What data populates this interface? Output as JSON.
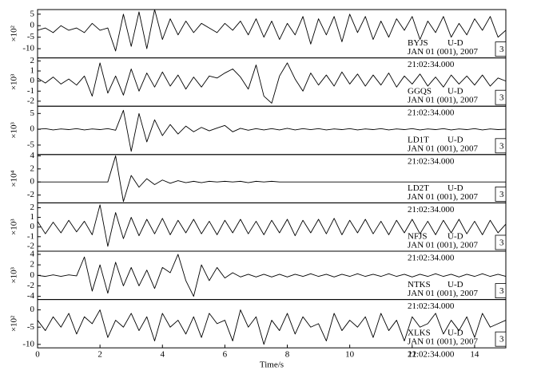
{
  "chart_data": [
    {
      "type": "line",
      "ylabel": "×10²",
      "station": "BYJS",
      "component": "U-D",
      "date": "JAN 01 (001), 2007",
      "time": "21:02:34.000",
      "scale_box": "3",
      "xlim": [
        0,
        15
      ],
      "ylim": [
        -14,
        7
      ],
      "yticks": [
        5,
        0,
        -5,
        -10
      ],
      "x": [
        0,
        0.25,
        0.5,
        0.75,
        1,
        1.25,
        1.5,
        1.75,
        2,
        2.25,
        2.5,
        2.75,
        3,
        3.25,
        3.5,
        3.75,
        4,
        4.25,
        4.5,
        4.75,
        5,
        5.25,
        5.5,
        5.75,
        6,
        6.25,
        6.5,
        6.75,
        7,
        7.25,
        7.5,
        7.75,
        8,
        8.25,
        8.5,
        8.75,
        9,
        9.25,
        9.5,
        9.75,
        10,
        10.25,
        10.5,
        10.75,
        11,
        11.25,
        11.5,
        11.75,
        12,
        12.25,
        12.5,
        12.75,
        13,
        13.25,
        13.5,
        13.75,
        14,
        14.25,
        14.5,
        14.75,
        15
      ],
      "series": [
        {
          "color": "#000000",
          "values": [
            -2,
            -1,
            -3,
            0,
            -2,
            -1,
            -3,
            1,
            -2,
            -1,
            -11,
            5,
            -9,
            6,
            -10,
            7,
            -6,
            3,
            -4,
            2,
            -3,
            1,
            -1,
            -3,
            1,
            -2,
            2,
            -4,
            3,
            -5,
            2,
            -6,
            1,
            -4,
            4,
            -8,
            3,
            -4,
            4,
            -7,
            5,
            -3,
            4,
            -6,
            2,
            -5,
            3,
            -2,
            4,
            -6,
            2,
            -3,
            4,
            -5,
            1,
            -4,
            3,
            -2,
            4,
            -5,
            -2
          ]
        }
      ]
    },
    {
      "type": "line",
      "ylabel": "×10³",
      "station": "GGQS",
      "component": "U-D",
      "date": "JAN 01 (001), 2007",
      "time": "21:02:34.000",
      "scale_box": "3",
      "xlim": [
        0,
        15
      ],
      "ylim": [
        -2.5,
        2.3
      ],
      "yticks": [
        2,
        1,
        0,
        -1,
        -2
      ],
      "x": [
        0,
        0.25,
        0.5,
        0.75,
        1,
        1.25,
        1.5,
        1.75,
        2,
        2.25,
        2.5,
        2.75,
        3,
        3.25,
        3.5,
        3.75,
        4,
        4.25,
        4.5,
        4.75,
        5,
        5.25,
        5.5,
        5.75,
        6,
        6.25,
        6.5,
        6.75,
        7,
        7.25,
        7.5,
        7.75,
        8,
        8.25,
        8.5,
        8.75,
        9,
        9.25,
        9.5,
        9.75,
        10,
        10.25,
        10.5,
        10.75,
        11,
        11.25,
        11.5,
        11.75,
        12,
        12.25,
        12.5,
        12.75,
        13,
        13.25,
        13.5,
        13.75,
        14,
        14.25,
        14.5,
        14.75,
        15
      ],
      "series": [
        {
          "color": "#000000",
          "values": [
            0.3,
            -0.2,
            0.4,
            -0.3,
            0.2,
            -0.4,
            0.5,
            -1.5,
            1.8,
            -1.2,
            0.5,
            -1.4,
            1.2,
            -1,
            0.8,
            -0.6,
            0.9,
            -0.5,
            0.6,
            -0.8,
            0.4,
            -0.6,
            0.5,
            0.3,
            0.8,
            1.2,
            0.4,
            -0.8,
            1.6,
            -1.5,
            -2.2,
            0.5,
            1.8,
            0.2,
            -1,
            0.8,
            -0.4,
            0.6,
            -0.5,
            0.9,
            -0.3,
            0.7,
            -0.5,
            0.6,
            -0.4,
            0.8,
            -0.6,
            0.5,
            -0.3,
            0.7,
            -0.5,
            0.4,
            -0.6,
            0.6,
            -0.3,
            0.5,
            -0.4,
            0.6,
            -0.5,
            0.3,
            0
          ]
        }
      ]
    },
    {
      "type": "line",
      "ylabel": "×10³",
      "station": "LD1T",
      "component": "U-D",
      "date": "JAN 01 (001), 2007",
      "time": "21:02:34.000",
      "scale_box": "3",
      "xlim": [
        0,
        15
      ],
      "ylim": [
        -8,
        7.3
      ],
      "yticks": [
        5,
        0,
        -5
      ],
      "x": [
        0,
        0.25,
        0.5,
        0.75,
        1,
        1.25,
        1.5,
        1.75,
        2,
        2.25,
        2.5,
        2.75,
        3,
        3.25,
        3.5,
        3.75,
        4,
        4.25,
        4.5,
        4.75,
        5,
        5.25,
        5.5,
        5.75,
        6,
        6.25,
        6.5,
        6.75,
        7,
        7.25,
        7.5,
        7.75,
        8,
        8.25,
        8.5,
        8.75,
        9,
        9.25,
        9.5,
        9.75,
        10,
        10.25,
        10.5,
        10.75,
        11,
        11.25,
        11.5,
        11.75,
        12,
        12.25,
        12.5,
        12.75,
        13,
        13.25,
        13.5,
        13.75,
        14,
        14.25,
        14.5,
        14.75,
        15
      ],
      "series": [
        {
          "color": "#000000",
          "values": [
            0,
            0.2,
            -0.2,
            0.1,
            -0.1,
            0.2,
            -0.2,
            0.1,
            -0.1,
            0.2,
            -0.3,
            6,
            -7,
            5,
            -4,
            3,
            -2,
            1.5,
            -1.5,
            1,
            -0.8,
            0.6,
            -0.5,
            0.4,
            1.2,
            -0.8,
            0.3,
            -0.3,
            0.2,
            -0.2,
            0.2,
            -0.2,
            0.3,
            -0.2,
            0.2,
            -0.1,
            0.2,
            -0.2,
            0.1,
            -0.1,
            0.2,
            -0.2,
            0.1,
            -0.1,
            0.2,
            -0.2,
            0.1,
            -0.1,
            0.2,
            -0.2,
            0.1,
            -0.1,
            0.2,
            -0.2,
            0.1,
            -0.1,
            0.2,
            -0.2,
            0.1,
            -0.1,
            0
          ]
        }
      ]
    },
    {
      "type": "line",
      "ylabel": "×10⁴",
      "station": "LD2T",
      "component": "U-D",
      "date": "JAN 01 (001), 2007",
      "time": "21:02:34.000",
      "scale_box": "3",
      "xlim": [
        0,
        15
      ],
      "ylim": [
        -3.2,
        4.2
      ],
      "yticks": [
        4,
        2,
        0,
        -2
      ],
      "x": [
        0,
        0.25,
        0.5,
        0.75,
        1,
        1.25,
        1.5,
        1.75,
        2,
        2.25,
        2.5,
        2.75,
        3,
        3.25,
        3.5,
        3.75,
        4,
        4.25,
        4.5,
        4.75,
        5,
        5.25,
        5.5,
        5.75,
        6,
        6.25,
        6.5,
        6.75,
        7,
        7.25,
        7.5,
        7.75,
        8,
        8.25,
        8.5,
        8.75,
        9,
        9.25,
        9.5,
        9.75,
        10,
        10.25,
        10.5,
        10.75,
        11,
        11.25,
        11.5,
        11.75,
        12,
        12.25,
        12.5,
        12.75,
        13,
        13.25,
        13.5,
        13.75,
        14,
        14.25,
        14.5,
        14.75,
        15
      ],
      "series": [
        {
          "color": "#000000",
          "values": [
            0,
            0,
            0,
            0,
            0,
            0,
            0,
            0,
            0,
            0,
            4,
            -3,
            1,
            -0.8,
            0.5,
            -0.4,
            0.3,
            -0.2,
            0.2,
            -0.1,
            0.1,
            -0.1,
            0.1,
            0,
            0.1,
            0,
            0.1,
            -0.1,
            0.1,
            0,
            0.1,
            0,
            0,
            0,
            0,
            0,
            0,
            0,
            0,
            0,
            0,
            0,
            0,
            0,
            0,
            0,
            0,
            0,
            0,
            0,
            0,
            0,
            0,
            0,
            0,
            0,
            0,
            0,
            0,
            0,
            0
          ]
        }
      ]
    },
    {
      "type": "line",
      "ylabel": "×10³",
      "station": "NFJS",
      "component": "U-D",
      "date": "JAN 01 (001), 2007",
      "time": "21:02:34.000",
      "scale_box": "3",
      "xlim": [
        0,
        15
      ],
      "ylim": [
        -2.5,
        2.5
      ],
      "yticks": [
        2,
        1,
        0,
        -1,
        -2
      ],
      "x": [
        0,
        0.25,
        0.5,
        0.75,
        1,
        1.25,
        1.5,
        1.75,
        2,
        2.25,
        2.5,
        2.75,
        3,
        3.25,
        3.5,
        3.75,
        4,
        4.25,
        4.5,
        4.75,
        5,
        5.25,
        5.5,
        5.75,
        6,
        6.25,
        6.5,
        6.75,
        7,
        7.25,
        7.5,
        7.75,
        8,
        8.25,
        8.5,
        8.75,
        9,
        9.25,
        9.5,
        9.75,
        10,
        10.25,
        10.5,
        10.75,
        11,
        11.25,
        11.5,
        11.75,
        12,
        12.25,
        12.5,
        12.75,
        13,
        13.25,
        13.5,
        13.75,
        14,
        14.25,
        14.5,
        14.75,
        15
      ],
      "series": [
        {
          "color": "#000000",
          "values": [
            0.6,
            -0.7,
            0.5,
            -0.6,
            0.7,
            -0.5,
            0.6,
            -0.8,
            2.3,
            -2,
            1.5,
            -1.2,
            1,
            -0.9,
            0.8,
            -0.7,
            0.9,
            -0.8,
            0.7,
            -0.6,
            0.8,
            -0.7,
            0.6,
            -0.8,
            0.7,
            -0.6,
            0.8,
            -0.7,
            0.6,
            -0.8,
            0.7,
            -0.6,
            0.8,
            -0.9,
            0.7,
            -0.6,
            0.8,
            -0.7,
            0.9,
            -0.8,
            0.7,
            -0.6,
            0.8,
            -0.7,
            0.6,
            -0.8,
            0.7,
            -0.6,
            0.8,
            -0.7,
            0.6,
            -0.8,
            0.7,
            -0.6,
            0.8,
            -0.7,
            0.6,
            -0.8,
            0.7,
            -0.6,
            0.3
          ]
        }
      ]
    },
    {
      "type": "line",
      "ylabel": "×10³",
      "station": "NTKS",
      "component": "U-D",
      "date": "JAN 01 (001), 2007",
      "time": "21:02:34.000",
      "scale_box": "3",
      "xlim": [
        0,
        15
      ],
      "ylim": [
        -4.6,
        4.6
      ],
      "yticks": [
        4,
        2,
        0,
        -2,
        -4
      ],
      "x": [
        0,
        0.25,
        0.5,
        0.75,
        1,
        1.25,
        1.5,
        1.75,
        2,
        2.25,
        2.5,
        2.75,
        3,
        3.25,
        3.5,
        3.75,
        4,
        4.25,
        4.5,
        4.75,
        5,
        5.25,
        5.5,
        5.75,
        6,
        6.25,
        6.5,
        6.75,
        7,
        7.25,
        7.5,
        7.75,
        8,
        8.25,
        8.5,
        8.75,
        9,
        9.25,
        9.5,
        9.75,
        10,
        10.25,
        10.5,
        10.75,
        11,
        11.25,
        11.5,
        11.75,
        12,
        12.25,
        12.5,
        12.75,
        13,
        13.25,
        13.5,
        13.75,
        14,
        14.25,
        14.5,
        14.75,
        15
      ],
      "series": [
        {
          "color": "#000000",
          "values": [
            0,
            -0.2,
            0.1,
            -0.2,
            0.1,
            -0.1,
            3.5,
            -3,
            2,
            -3.4,
            2.5,
            -2,
            1.5,
            -2,
            1,
            -2.5,
            1.5,
            0.5,
            4,
            -1,
            -4,
            2,
            -1,
            1.5,
            -0.5,
            0.5,
            -0.3,
            0.2,
            -0.3,
            0.2,
            -0.3,
            0.2,
            -0.3,
            0.2,
            -0.2,
            0.3,
            -0.2,
            0.2,
            -0.3,
            0.2,
            -0.2,
            0.3,
            -0.2,
            0.2,
            -0.2,
            0.3,
            -0.2,
            0.2,
            -0.3,
            0.2,
            -0.2,
            0.3,
            -0.2,
            0.2,
            -0.3,
            0.2,
            -0.2,
            0.3,
            -0.2,
            0.2,
            -0.2
          ]
        }
      ]
    },
    {
      "type": "line",
      "ylabel": "×10²",
      "station": "XLKS",
      "component": "U-D",
      "date": "JAN 01 (001), 2007",
      "time": "21:02:34.000",
      "scale_box": "3",
      "xlim": [
        0,
        15
      ],
      "ylim": [
        -11,
        3
      ],
      "yticks": [
        0,
        -5,
        -10
      ],
      "xticks": [
        0,
        2,
        4,
        6,
        8,
        10,
        12,
        14
      ],
      "xlabel": "Time/s",
      "x": [
        0,
        0.25,
        0.5,
        0.75,
        1,
        1.25,
        1.5,
        1.75,
        2,
        2.25,
        2.5,
        2.75,
        3,
        3.25,
        3.5,
        3.75,
        4,
        4.25,
        4.5,
        4.75,
        5,
        5.25,
        5.5,
        5.75,
        6,
        6.25,
        6.5,
        6.75,
        7,
        7.25,
        7.5,
        7.75,
        8,
        8.25,
        8.5,
        8.75,
        9,
        9.25,
        9.5,
        9.75,
        10,
        10.25,
        10.5,
        10.75,
        11,
        11.25,
        11.5,
        11.75,
        12,
        12.25,
        12.5,
        12.75,
        13,
        13.25,
        13.5,
        13.75,
        14,
        14.25,
        14.5,
        14.75,
        15
      ],
      "series": [
        {
          "color": "#000000",
          "values": [
            -3,
            -6,
            -2,
            -5,
            -1,
            -7,
            -2,
            -4,
            0,
            -8,
            -3,
            -5,
            -1,
            -6,
            -2,
            -9,
            -1,
            -5,
            -3,
            -7,
            -2,
            -8,
            -1,
            -4,
            -3,
            -9,
            0,
            -5,
            -2,
            -10,
            -3,
            -6,
            -1,
            -7,
            -2,
            -5,
            -4,
            -9,
            -1,
            -6,
            -3,
            -5,
            -2,
            -8,
            -1,
            -6,
            -3,
            -9,
            -2,
            -5,
            -4,
            -1,
            -7,
            -3,
            -6,
            -2,
            -8,
            -1,
            -5,
            -4,
            -3
          ]
        }
      ]
    }
  ]
}
